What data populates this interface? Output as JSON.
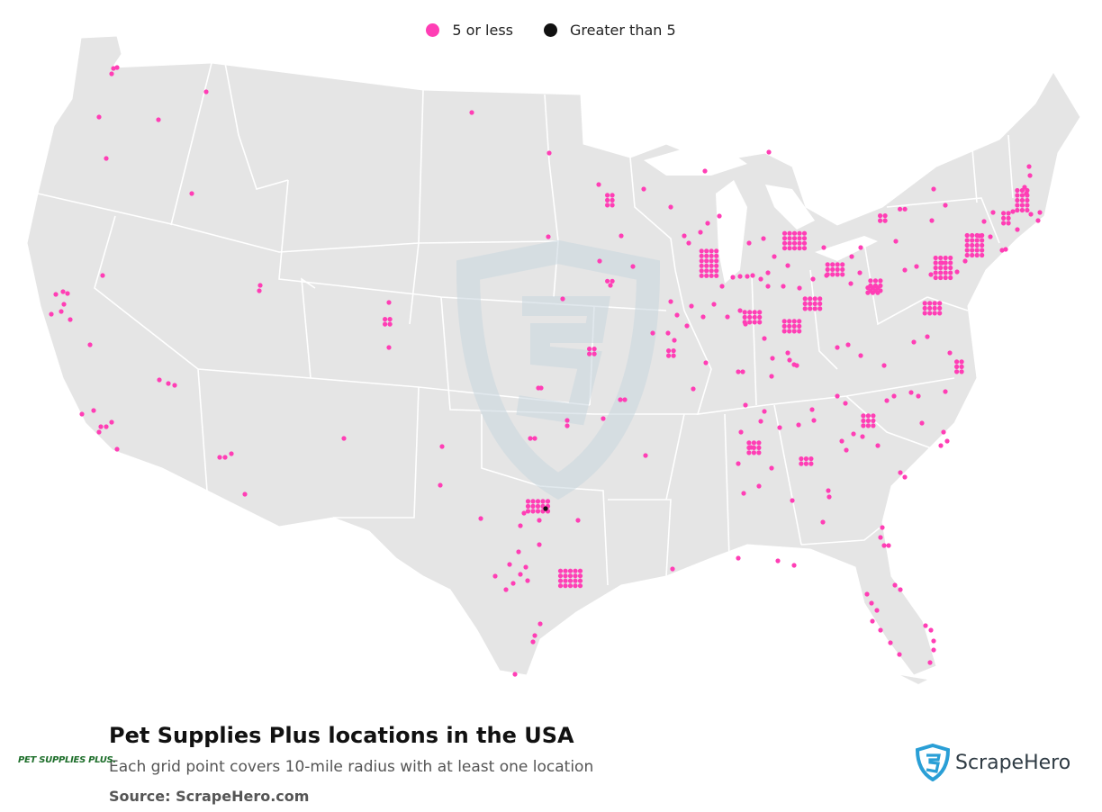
{
  "legend": {
    "item1": {
      "label": "5 or less",
      "color": "#ff3eb5"
    },
    "item2": {
      "label": "Greater than 5",
      "color": "#111111"
    }
  },
  "title": "Pet Supplies Plus locations in the USA",
  "subtitle": "Each grid point covers 10-mile radius with at least one location",
  "source": "Source: ScrapeHero.com",
  "brand_logo_text": "PET SUPPLIES PLUS.",
  "scrapehero_logo_text": "ScrapeHero",
  "colors": {
    "land": "#e5e5e5",
    "border": "#ffffff",
    "point_low": "#ff3eb5",
    "point_high": "#111111",
    "watermark": "#c9d7df"
  }
}
